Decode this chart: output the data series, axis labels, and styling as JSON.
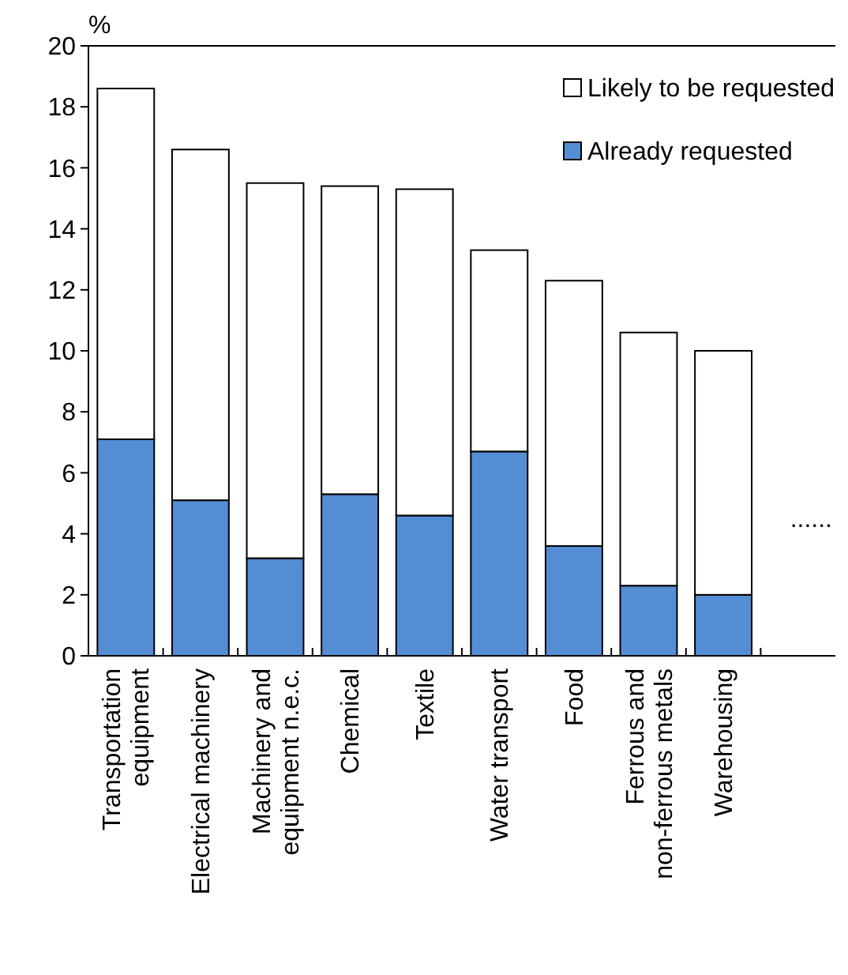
{
  "chart_data": {
    "type": "bar",
    "stacked": true,
    "ylabel": "%",
    "categories": [
      "Transportation equipment",
      "Electrical machinery",
      "Machinery and equipment n.e.c.",
      "Chemical",
      "Textile",
      "Water transport",
      "Food",
      "Ferrous and non-ferrous metals",
      "Warehousing",
      null
    ],
    "series": [
      {
        "name": "Already requested",
        "color": "#548dd4",
        "values": [
          7.1,
          5.1,
          3.2,
          5.3,
          4.6,
          6.7,
          3.6,
          2.3,
          2.0,
          null
        ]
      },
      {
        "name": "Likely to be requested",
        "color": "#ffffff",
        "values": [
          11.5,
          11.5,
          12.3,
          10.1,
          10.7,
          6.6,
          8.7,
          8.3,
          8.0,
          null
        ]
      }
    ],
    "ylim": [
      0,
      20
    ],
    "yticks": [
      0,
      2,
      4,
      6,
      8,
      10,
      12,
      14,
      16,
      18,
      20
    ],
    "grid": false,
    "legend": "top right",
    "annotations": [
      "......"
    ]
  }
}
